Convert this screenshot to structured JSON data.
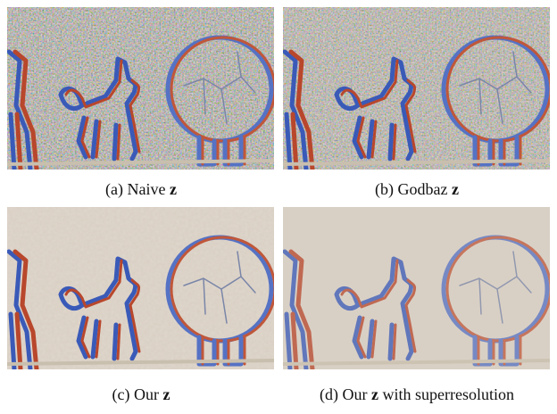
{
  "panels": [
    {
      "prefix": "(a) Naive",
      "symbol": "z"
    },
    {
      "prefix": "(b) Godbaz",
      "symbol": "z"
    },
    {
      "prefix": "(c) Our",
      "symbol": "z"
    },
    {
      "prefix": "(d) Our",
      "symbol": "z",
      "suffix": "with superresolution"
    }
  ]
}
